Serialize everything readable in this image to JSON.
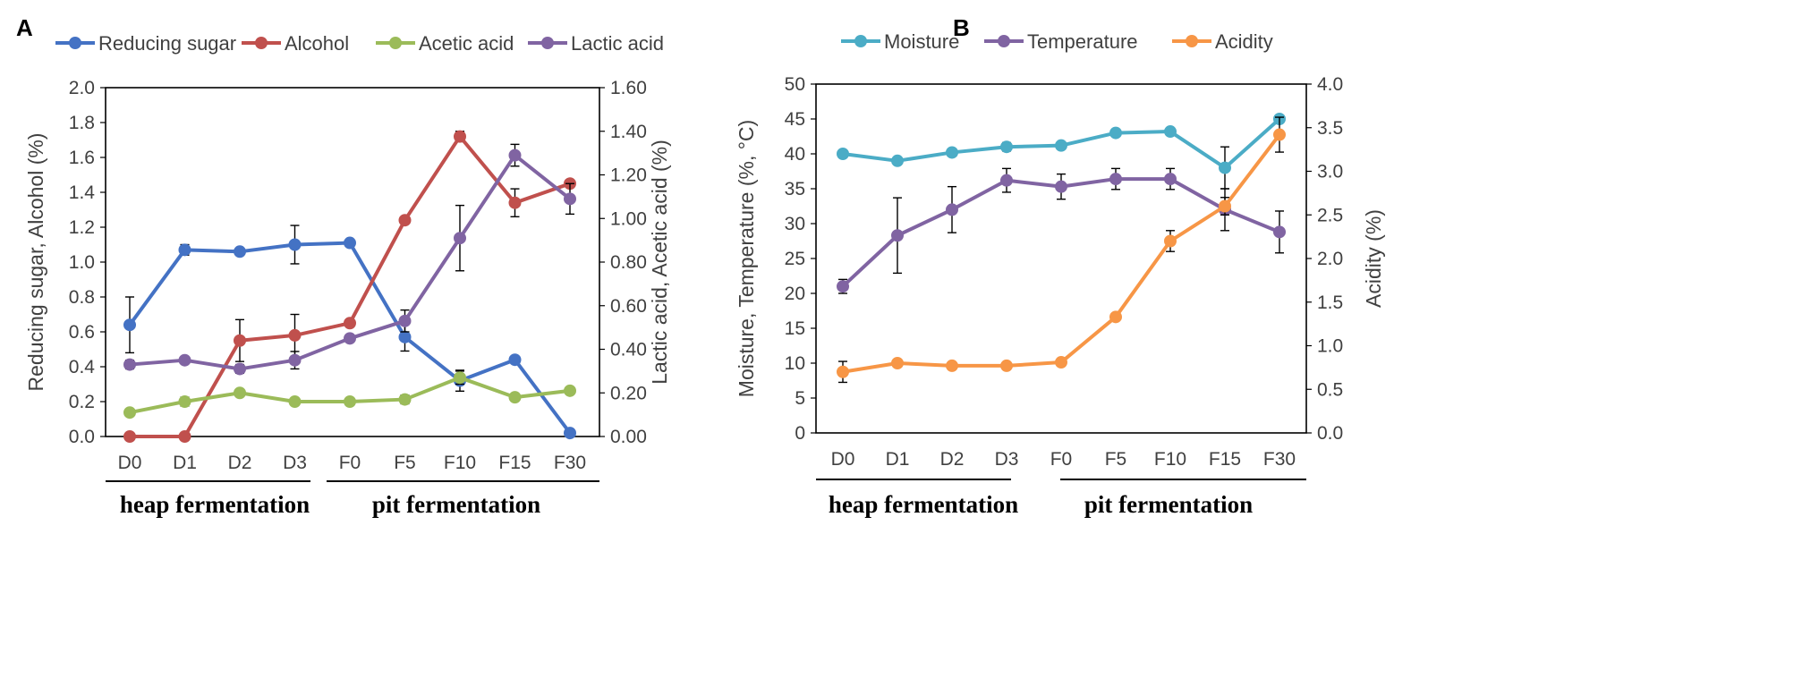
{
  "chart_data": [
    {
      "type": "line",
      "panel": "A",
      "categories": [
        "D0",
        "D1",
        "D2",
        "D3",
        "F0",
        "F5",
        "F10",
        "F15",
        "F30"
      ],
      "ylabel": "Reducing sugar, Alcohol (%)",
      "ylabel_right": "Lactic acid, Acetic acid (%)",
      "ylim": [
        0,
        2.0
      ],
      "ylim_right": [
        0,
        1.6
      ],
      "yticks": [
        "0.0",
        "0.2",
        "0.4",
        "0.6",
        "0.8",
        "1.0",
        "1.2",
        "1.4",
        "1.6",
        "1.8",
        "2.0"
      ],
      "yticks_right": [
        "0.00",
        "0.20",
        "0.40",
        "0.60",
        "0.80",
        "1.00",
        "1.20",
        "1.40",
        "1.60"
      ],
      "legend_position": "top",
      "series": [
        {
          "name": "Reducing sugar",
          "axis": "left",
          "color": "#4472c4",
          "values": [
            0.64,
            1.07,
            1.06,
            1.1,
            1.11,
            0.57,
            0.32,
            0.44,
            0.02
          ],
          "errors": [
            0.16,
            0.03,
            0.02,
            0.11,
            0.02,
            0.08,
            0.06,
            0.02,
            0.02
          ]
        },
        {
          "name": "Alcohol",
          "axis": "left",
          "color": "#c0504d",
          "values": [
            0.0,
            0.0,
            0.55,
            0.58,
            0.65,
            1.24,
            1.72,
            1.34,
            1.45
          ],
          "errors": [
            0.0,
            0.0,
            0.12,
            0.12,
            0.02,
            0.01,
            0.03,
            0.08,
            0.02
          ]
        },
        {
          "name": "Acetic acid",
          "axis": "right",
          "color": "#9bbb59",
          "values": [
            0.11,
            0.16,
            0.2,
            0.16,
            0.16,
            0.17,
            0.27,
            0.18,
            0.21
          ],
          "errors": [
            0.01,
            0.02,
            0.01,
            0.01,
            0.01,
            0.02,
            0.03,
            0.01,
            0.01
          ]
        },
        {
          "name": "Lactic acid",
          "axis": "right",
          "color": "#8064a2",
          "values": [
            0.33,
            0.35,
            0.31,
            0.35,
            0.45,
            0.53,
            0.91,
            1.29,
            1.09
          ],
          "errors": [
            0.02,
            0.01,
            0.02,
            0.04,
            0.01,
            0.05,
            0.15,
            0.05,
            0.07
          ]
        }
      ],
      "groups": [
        {
          "label": "heap fermentation",
          "from": 0,
          "to": 3
        },
        {
          "label": "pit fermentation",
          "from": 4,
          "to": 8
        }
      ]
    },
    {
      "type": "line",
      "panel": "B",
      "categories": [
        "D0",
        "D1",
        "D2",
        "D3",
        "F0",
        "F5",
        "F10",
        "F15",
        "F30"
      ],
      "ylabel": "Moisture, Temperature (%,  °C)",
      "ylabel_right": "Acidity (%)",
      "ylim": [
        0,
        50
      ],
      "ylim_right": [
        0,
        4.0
      ],
      "yticks": [
        "0",
        "5",
        "10",
        "15",
        "20",
        "25",
        "30",
        "35",
        "40",
        "45",
        "50"
      ],
      "yticks_right": [
        "0.0",
        "0.5",
        "1.0",
        "1.5",
        "2.0",
        "2.5",
        "3.0",
        "3.5",
        "4.0"
      ],
      "legend_position": "top",
      "series": [
        {
          "name": "Moisture",
          "axis": "left",
          "color": "#4bacc6",
          "values": [
            40.0,
            39.0,
            40.2,
            41.0,
            41.2,
            43.0,
            43.2,
            38.0,
            45.0
          ],
          "errors": [
            0.2,
            0.3,
            0.3,
            0.6,
            0.2,
            0.3,
            0.3,
            3.0,
            0.5
          ]
        },
        {
          "name": "Temperature",
          "axis": "left",
          "color": "#8064a2",
          "values": [
            21.0,
            28.3,
            32.0,
            36.2,
            35.3,
            36.4,
            36.4,
            32.0,
            28.8
          ],
          "errors": [
            1.0,
            5.4,
            3.3,
            1.7,
            1.8,
            1.5,
            1.5,
            3.0,
            3.0
          ]
        },
        {
          "name": "Acidity",
          "axis": "right",
          "color": "#f79646",
          "values": [
            0.7,
            0.8,
            0.77,
            0.77,
            0.81,
            1.33,
            2.2,
            2.6,
            3.42
          ],
          "errors": [
            0.12,
            0.03,
            0.02,
            0.02,
            0.02,
            0.03,
            0.12,
            0.1,
            0.2
          ]
        }
      ],
      "groups": [
        {
          "label": "heap fermentation",
          "from": 0,
          "to": 3
        },
        {
          "label": "pit fermentation",
          "from": 4,
          "to": 8
        }
      ]
    }
  ]
}
